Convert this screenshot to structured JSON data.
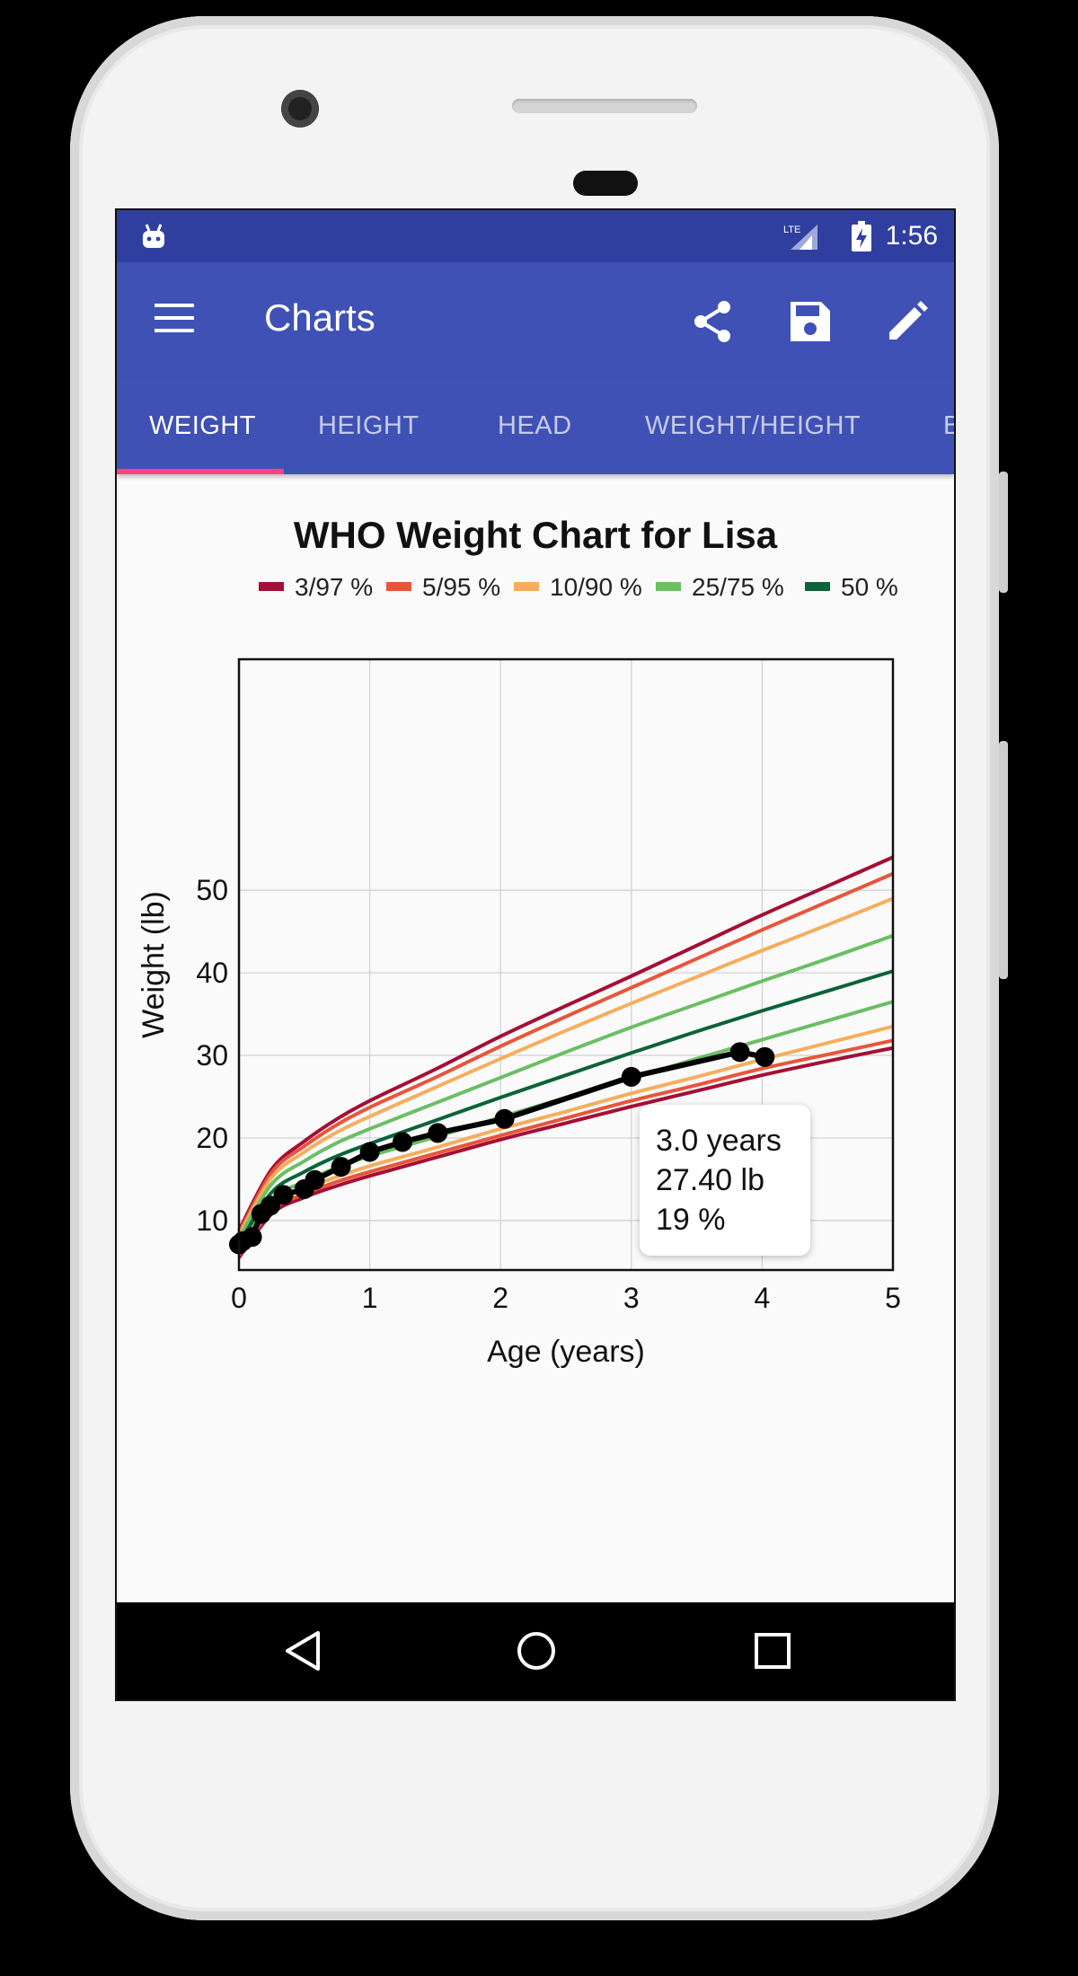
{
  "status_bar": {
    "time": "1:56",
    "network": "LTE"
  },
  "app_bar": {
    "title": "Charts",
    "actions": [
      "share-icon",
      "save-icon",
      "edit-icon"
    ]
  },
  "tabs": [
    {
      "label": "WEIGHT",
      "active": true
    },
    {
      "label": "HEIGHT",
      "active": false
    },
    {
      "label": "HEAD",
      "active": false
    },
    {
      "label": "WEIGHT/HEIGHT",
      "active": false
    },
    {
      "label": "B",
      "active": false
    }
  ],
  "tooltip": {
    "line1": "3.0 years",
    "line2": "27.40 lb",
    "line3": "19 %"
  },
  "chart_data": {
    "type": "line",
    "title": "WHO Weight Chart for Lisa",
    "xlabel": "Age (years)",
    "ylabel": "Weight (lb)",
    "xlim": [
      0,
      5
    ],
    "ylim": [
      4,
      56
    ],
    "x_ticks": [
      "0",
      "1",
      "2",
      "3",
      "4",
      "5"
    ],
    "y_ticks": [
      "10",
      "20",
      "30",
      "40",
      "50"
    ],
    "grid": true,
    "legend": [
      {
        "name": "3/97 %",
        "color": "#a50f35"
      },
      {
        "name": "5/95 %",
        "color": "#e8553a"
      },
      {
        "name": "10/90 %",
        "color": "#f6ae5d"
      },
      {
        "name": "25/75 %",
        "color": "#6abf62"
      },
      {
        "name": "50 %",
        "color": "#0b6339"
      }
    ],
    "x": [
      0,
      0.25,
      0.5,
      0.75,
      1,
      1.5,
      2,
      2.5,
      3,
      3.5,
      4,
      4.5,
      5
    ],
    "series": [
      {
        "name": "3/97 %",
        "color": "#a50f35",
        "values": [
          5.5,
          10.8,
          12.8,
          14.2,
          15.4,
          17.6,
          19.8,
          21.8,
          23.8,
          25.7,
          27.6,
          29.3,
          30.9
        ]
      },
      {
        "name": "3/97 %",
        "color": "#a50f35",
        "values": [
          8.8,
          16.2,
          19.6,
          22.3,
          24.5,
          28.3,
          32.3,
          36.0,
          39.6,
          43.3,
          47.0,
          50.5,
          54.0
        ]
      },
      {
        "name": "5/95 %",
        "color": "#e8553a",
        "values": [
          5.8,
          11.2,
          13.2,
          14.7,
          15.9,
          18.1,
          20.3,
          22.4,
          24.5,
          26.4,
          28.4,
          30.1,
          31.8
        ]
      },
      {
        "name": "5/95 %",
        "color": "#e8553a",
        "values": [
          8.5,
          15.8,
          19.0,
          21.6,
          23.7,
          27.3,
          31.1,
          34.7,
          38.2,
          41.7,
          45.2,
          48.6,
          52.0
        ]
      },
      {
        "name": "10/90 %",
        "color": "#f6ae5d",
        "values": [
          6.0,
          11.7,
          13.8,
          15.3,
          16.6,
          18.8,
          21.1,
          23.2,
          25.4,
          27.4,
          29.5,
          31.5,
          33.5
        ]
      },
      {
        "name": "10/90 %",
        "color": "#f6ae5d",
        "values": [
          8.2,
          15.2,
          18.3,
          20.7,
          22.6,
          26.1,
          29.6,
          33.0,
          36.3,
          39.5,
          42.7,
          45.8,
          49.0
        ]
      },
      {
        "name": "25/75 %",
        "color": "#6abf62",
        "values": [
          6.5,
          12.5,
          14.7,
          16.4,
          17.8,
          20.1,
          22.5,
          24.9,
          27.2,
          29.6,
          31.9,
          34.2,
          36.5
        ]
      },
      {
        "name": "25/75 %",
        "color": "#6abf62",
        "values": [
          7.8,
          14.4,
          17.2,
          19.4,
          21.1,
          24.2,
          27.3,
          30.4,
          33.4,
          36.2,
          39.0,
          41.7,
          44.5
        ]
      },
      {
        "name": "50 %",
        "color": "#0b6339",
        "values": [
          7.1,
          13.4,
          15.9,
          17.8,
          19.3,
          22.1,
          24.9,
          27.6,
          30.3,
          32.9,
          35.4,
          37.8,
          40.2
        ]
      }
    ],
    "measurements": {
      "name": "Lisa",
      "color": "#000000",
      "x": [
        0.0,
        0.03,
        0.1,
        0.17,
        0.24,
        0.34,
        0.5,
        0.58,
        0.78,
        1.0,
        1.25,
        1.52,
        2.03,
        3.0,
        3.83,
        4.02
      ],
      "y": [
        7.1,
        7.5,
        8.0,
        10.8,
        11.8,
        13.1,
        13.8,
        14.9,
        16.5,
        18.3,
        19.5,
        20.6,
        22.3,
        27.4,
        30.4,
        29.8
      ]
    }
  }
}
